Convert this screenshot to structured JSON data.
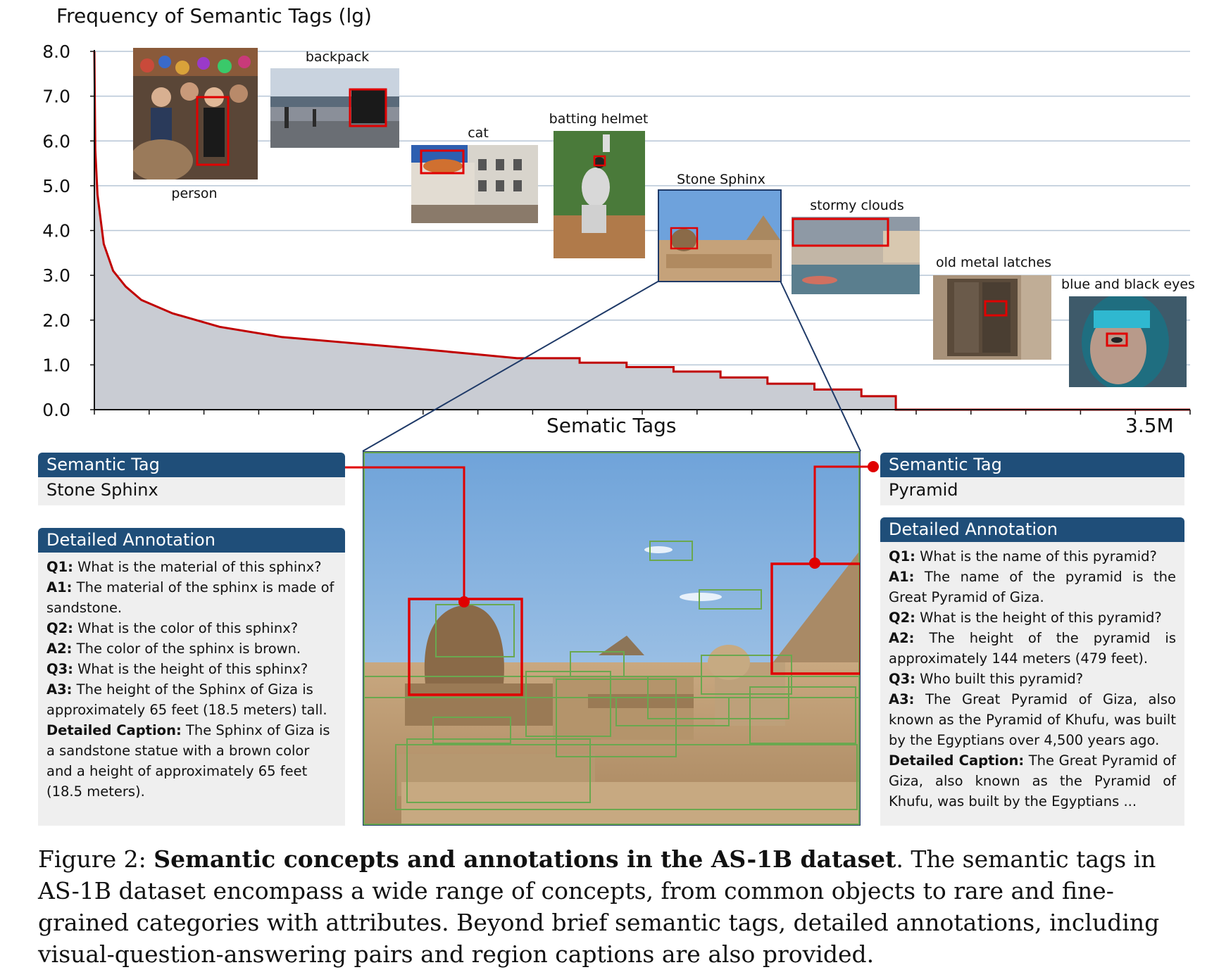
{
  "chart_data": {
    "type": "area",
    "ylabel": "Frequency of Semantic Tags (lg)",
    "xlabel": "Sematic Tags",
    "x_end_label": "3.5M",
    "y_ticks": [
      "0.0",
      "1.0",
      "2.0",
      "3.0",
      "4.0",
      "5.0",
      "6.0",
      "7.0",
      "8.0"
    ],
    "ylim": [
      0,
      8
    ],
    "xlim": [
      0,
      3.5
    ],
    "x_unit": "M tags",
    "x": [
      0,
      0.003,
      0.01,
      0.03,
      0.06,
      0.1,
      0.15,
      0.25,
      0.4,
      0.6,
      0.8,
      1.0,
      1.2,
      1.35,
      1.55,
      1.7,
      1.85,
      2.0,
      2.15,
      2.3,
      2.45,
      2.55,
      2.56,
      3.5
    ],
    "values": [
      8.0,
      5.8,
      4.8,
      3.7,
      3.1,
      2.75,
      2.45,
      2.15,
      1.85,
      1.62,
      1.5,
      1.38,
      1.25,
      1.15,
      1.05,
      0.95,
      0.85,
      0.72,
      0.58,
      0.45,
      0.3,
      0.3,
      0.0,
      0.0
    ],
    "grid": true,
    "line_color": "#c00000",
    "fill_color": "#c9ccd3",
    "grid_color": "#b7c6d6"
  },
  "examples": [
    {
      "label": "person"
    },
    {
      "label": "backpack"
    },
    {
      "label": "cat"
    },
    {
      "label": "batting helmet"
    },
    {
      "label": "Stone Sphinx"
    },
    {
      "label": "stormy clouds"
    },
    {
      "label": "old metal latches"
    },
    {
      "label": "blue and black eyes"
    }
  ],
  "left_panel": {
    "tag_header": "Semantic Tag",
    "tag_value": "Stone Sphinx",
    "annotation_header": "Detailed Annotation",
    "qa": [
      {
        "k": "Q1:",
        "v": " What is the material of this sphinx?"
      },
      {
        "k": "A1:",
        "v": " The material of the sphinx is made of sandstone."
      },
      {
        "k": "Q2:",
        "v": " What is the color of this sphinx?"
      },
      {
        "k": "A2:",
        "v": " The color of the sphinx is brown."
      },
      {
        "k": "Q3:",
        "v": " What is the height of this sphinx?"
      },
      {
        "k": "A3:",
        "v": " The height of the Sphinx of Giza is approximately 65 feet (18.5 meters) tall."
      },
      {
        "k": "Detailed Caption:",
        "v": " The Sphinx of Giza is a sandstone statue with a brown color and a height of approximately 65 feet (18.5 meters)."
      }
    ]
  },
  "right_panel": {
    "tag_header": "Semantic Tag",
    "tag_value": "Pyramid",
    "annotation_header": "Detailed Annotation",
    "qa": [
      {
        "k": "Q1:",
        "v": " What is the name of this pyramid?"
      },
      {
        "k": "A1:",
        "v": " The name of the pyramid is the Great Pyramid of Giza."
      },
      {
        "k": "Q2:",
        "v": " What is the height of this pyramid?"
      },
      {
        "k": "A2:",
        "v": " The height of the pyramid is approximately 144 meters (479 feet)."
      },
      {
        "k": "Q3:",
        "v": " Who built this pyramid?"
      },
      {
        "k": "A3:",
        "v": " The Great Pyramid of Giza, also known as the Pyramid of Khufu, was built by the Egyptians over 4,500 years ago."
      },
      {
        "k": "Detailed Caption:",
        "v": " The Great Pyramid of Giza, also known as the Pyramid of Khufu, was built by the Egyptians ..."
      }
    ]
  },
  "caption": {
    "prefix": "Figure 2: ",
    "bold": "Semantic concepts and annotations in the AS-1B dataset",
    "rest": ". The semantic tags in AS-1B dataset encompass a wide range of concepts, from common objects to rare and fine-grained categories with attributes. Beyond brief semantic tags, detailed annotations, including visual-question-answering pairs and region captions are also provided."
  }
}
